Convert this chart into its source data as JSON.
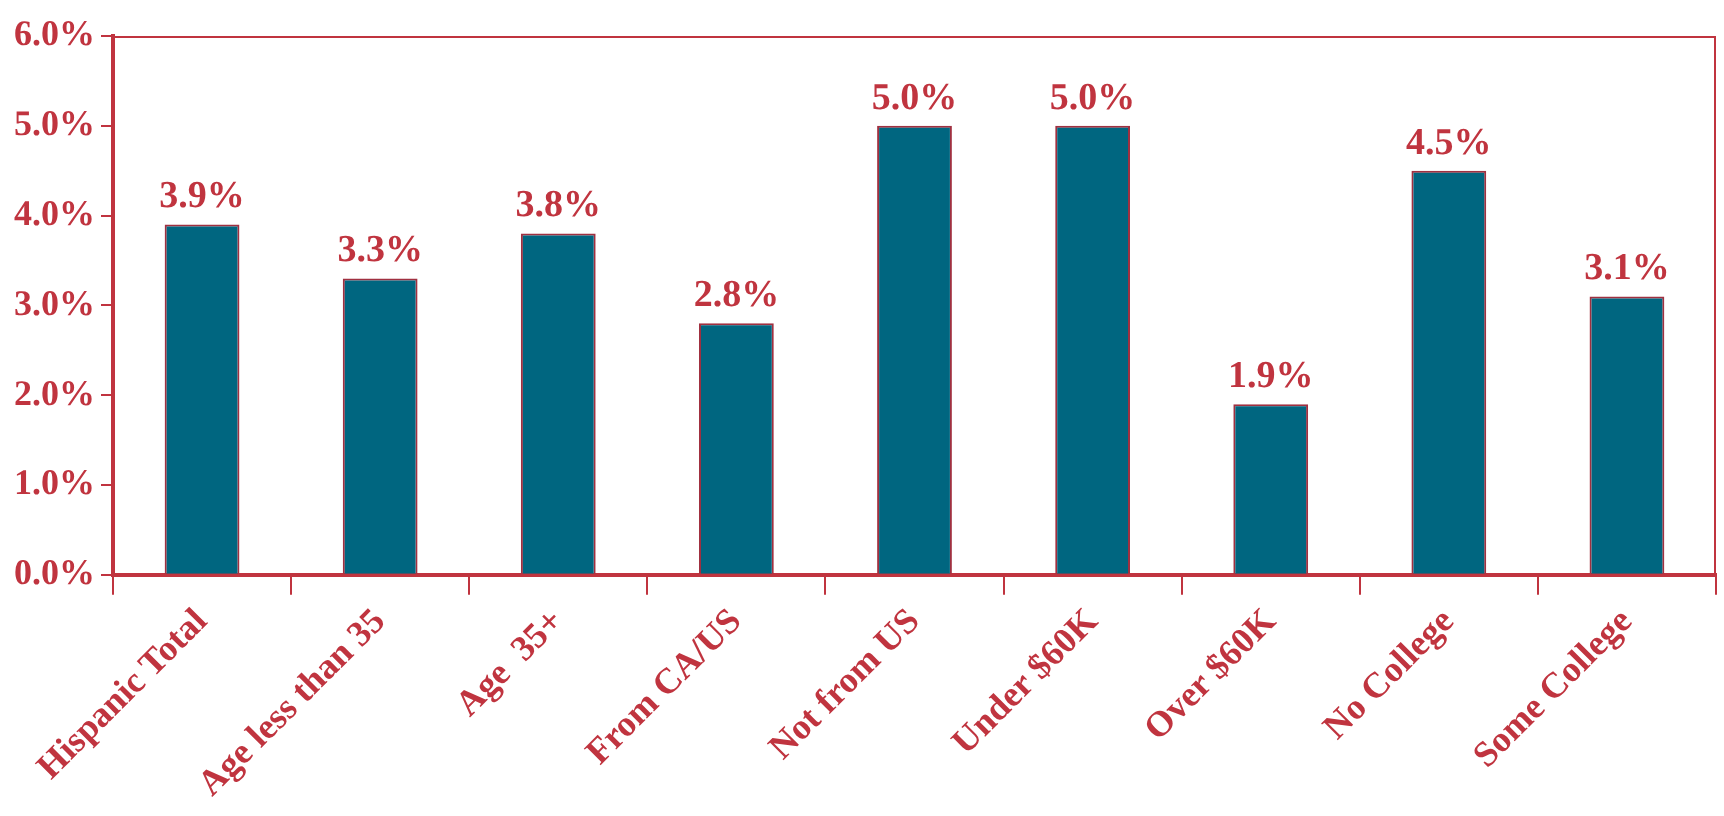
{
  "chart_data": {
    "type": "bar",
    "categories": [
      "Hispanic Total",
      "Age less than 35",
      "Age  35+",
      "From CA/US",
      "Not from US",
      "Under $60K",
      "Over $60K",
      "No College",
      "Some College"
    ],
    "values": [
      3.9,
      3.3,
      3.8,
      2.8,
      5.0,
      5.0,
      1.9,
      4.5,
      3.1
    ],
    "value_labels": [
      "3.9%",
      "3.3%",
      "3.8%",
      "2.8%",
      "5.0%",
      "5.0%",
      "1.9%",
      "4.5%",
      "3.1%"
    ],
    "color": "#006680",
    "ylim": [
      0,
      6
    ],
    "yticks": [
      {
        "value": 0,
        "label": "0.0%"
      },
      {
        "value": 1,
        "label": "1.0%"
      },
      {
        "value": 2,
        "label": "2.0%"
      },
      {
        "value": 3,
        "label": "3.0%"
      },
      {
        "value": 4,
        "label": "4.0%"
      },
      {
        "value": 5,
        "label": "5.0%"
      },
      {
        "value": 6,
        "label": "6.0%"
      }
    ],
    "grid": false,
    "legend": false
  }
}
